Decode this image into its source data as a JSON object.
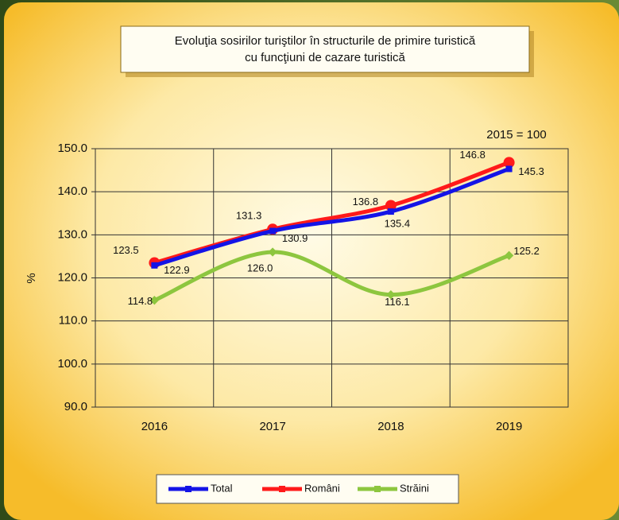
{
  "chart_data": {
    "type": "line",
    "title": [
      "Evoluţia sosirilor turiştilor în structurile de primire turistică",
      "cu funcţiuni de cazare turistică"
    ],
    "annotation": "2015 = 100",
    "y_label": "%",
    "categories": [
      "2016",
      "2017",
      "2018",
      "2019"
    ],
    "series": [
      {
        "name": "Total",
        "color": "#1414e6",
        "values": [
          122.9,
          130.9,
          135.4,
          145.3
        ]
      },
      {
        "name": "Români",
        "color": "#ff1a1a",
        "values": [
          123.5,
          131.3,
          136.8,
          146.8
        ]
      },
      {
        "name": "Străini",
        "color": "#8dc63f",
        "values": [
          114.8,
          126.0,
          116.1,
          125.2
        ],
        "value_labels": [
          "114.8",
          "126.0",
          "116.1",
          "125.2"
        ]
      }
    ],
    "ylim": [
      90,
      150
    ],
    "yticks": [
      {
        "value": 90,
        "label": "90.0"
      },
      {
        "value": 100,
        "label": "100.0"
      },
      {
        "value": 110,
        "label": "110.0"
      },
      {
        "value": 120,
        "label": "120.0"
      },
      {
        "value": 130,
        "label": "130.0"
      },
      {
        "value": 140,
        "label": "140.0"
      },
      {
        "value": 150,
        "label": "150.0"
      }
    ],
    "grid": true,
    "legend": "bottom"
  }
}
